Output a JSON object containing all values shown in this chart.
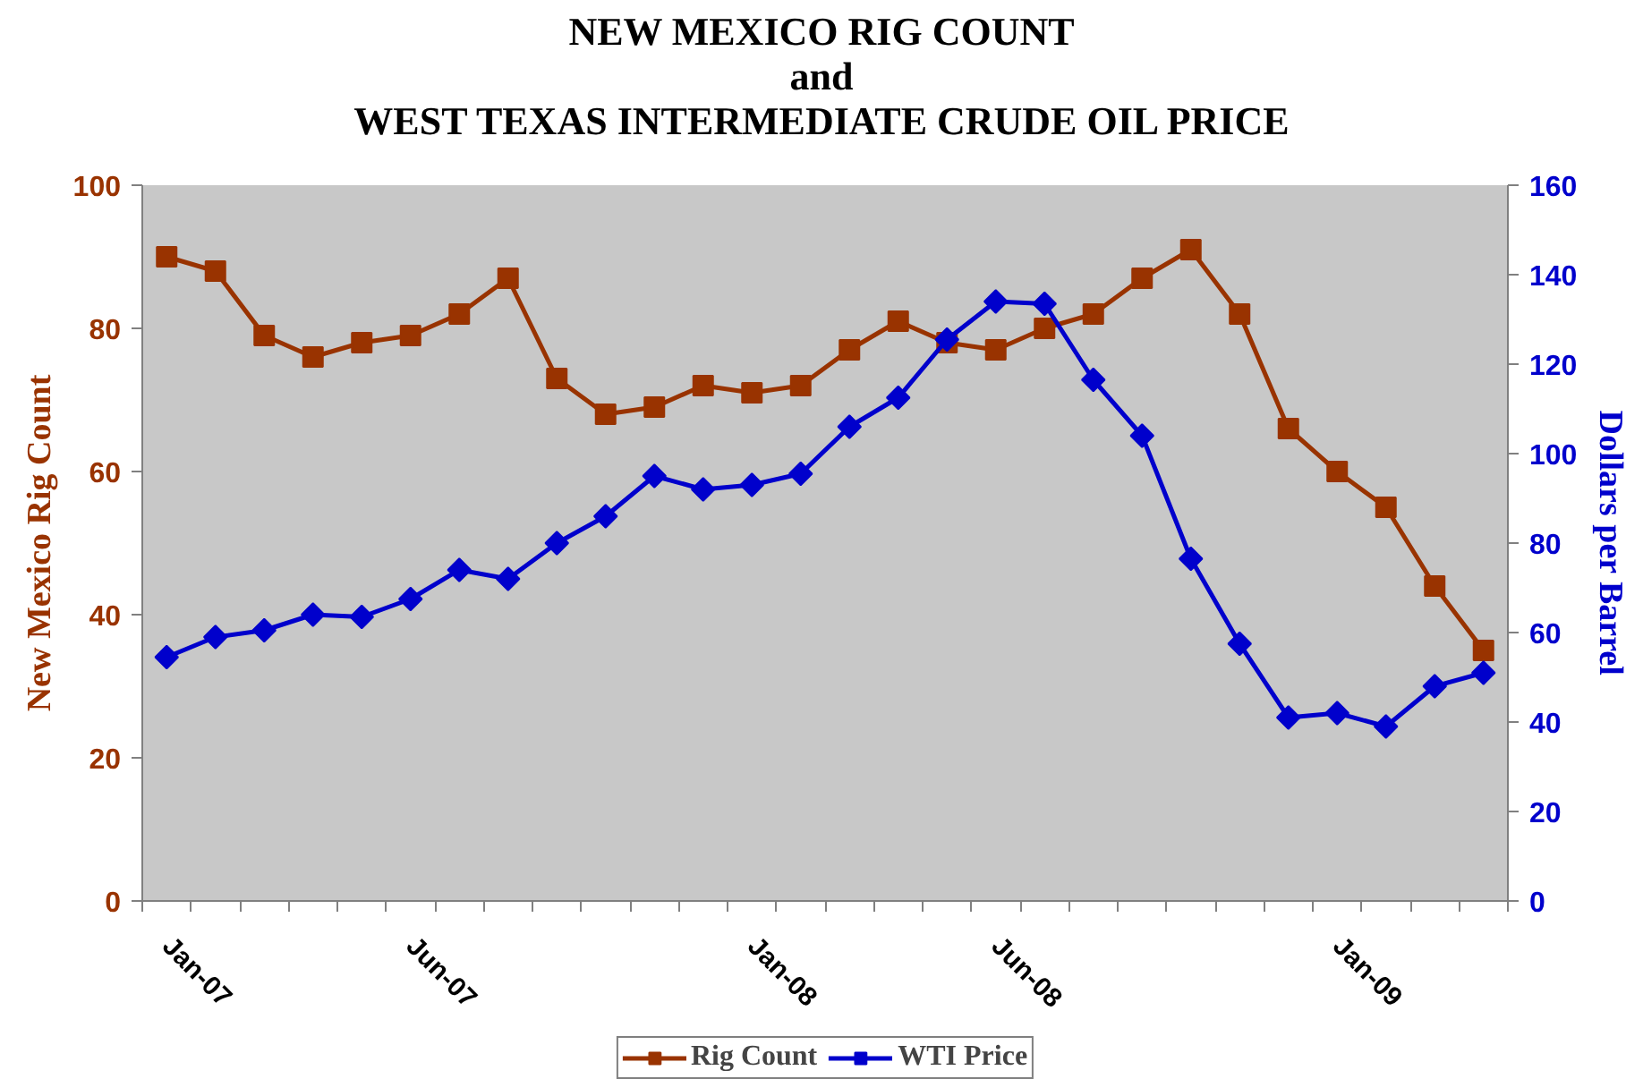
{
  "chart_data": {
    "type": "line",
    "title": "NEW MEXICO RIG COUNT\nand\nWEST TEXAS INTERMEDIATE CRUDE OIL PRICE",
    "ylabel": "New Mexico Rig Count",
    "y2label": "Dollars per Barrel",
    "categories": [
      "Jan-07",
      null,
      null,
      null,
      null,
      "Jun-07",
      null,
      null,
      null,
      null,
      null,
      null,
      "Jan-08",
      null,
      null,
      null,
      null,
      "Jun-08",
      null,
      null,
      null,
      null,
      null,
      null,
      "Jan-09",
      null,
      null,
      null
    ],
    "series": [
      {
        "name": "Rig Count",
        "color": "#993300",
        "marker": "square",
        "values": [
          90,
          88,
          79,
          76,
          78,
          79,
          82,
          87,
          73,
          68,
          69,
          72,
          71,
          72,
          77,
          81,
          78,
          77,
          80,
          82,
          87,
          91,
          82,
          66,
          60,
          55,
          44,
          35
        ]
      },
      {
        "name": "WTI Price",
        "color": "#0000cc",
        "marker": "diamond",
        "axis": "y2",
        "values": [
          54.5,
          59,
          60.5,
          64,
          63.5,
          67.5,
          74,
          72,
          80,
          86,
          95,
          92,
          93,
          95.5,
          106,
          112.5,
          125.5,
          134,
          133.5,
          116.5,
          104,
          76.5,
          57.5,
          41,
          42,
          39,
          48,
          51
        ]
      }
    ],
    "ylim": [
      0,
      100
    ],
    "yticks": [
      0,
      20,
      40,
      60,
      80,
      100
    ],
    "y2lim": [
      0,
      160
    ],
    "y2ticks": [
      0,
      20,
      40,
      60,
      80,
      100,
      120,
      140,
      160
    ],
    "grid": false,
    "legend": "bottom",
    "line_style": "solid"
  }
}
